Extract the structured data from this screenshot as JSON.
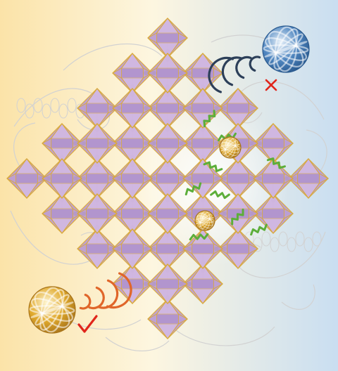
{
  "figure": {
    "background_left": "#fbe3a8",
    "background_mid": "#fdf6e0",
    "background_right": "#c9def1",
    "octahedron_face_light": "#d7bfe6",
    "octahedron_face_mid": "#b99ad3",
    "octahedron_face_dark": "#9a7bbf",
    "octahedron_edge": "#d9a93a",
    "linker_color": "#8c8f52",
    "guest_molecule_color": "#5cae3a",
    "swirl_lines": "#d2d2d2"
  },
  "particles": [
    {
      "name": "rejected-particle",
      "color": "#4f86c0",
      "status": "rejected"
    },
    {
      "name": "accepted-particle",
      "color": "#e0a92c",
      "status": "accepted"
    },
    {
      "name": "pore-guest-small",
      "color": "#e0a92c",
      "status": "inside"
    }
  ],
  "marks": {
    "reject_color": "#e0251b",
    "accept_color": "#e0251b",
    "wave_blue": "#2c3f59",
    "wave_orange": "#e0662a"
  }
}
